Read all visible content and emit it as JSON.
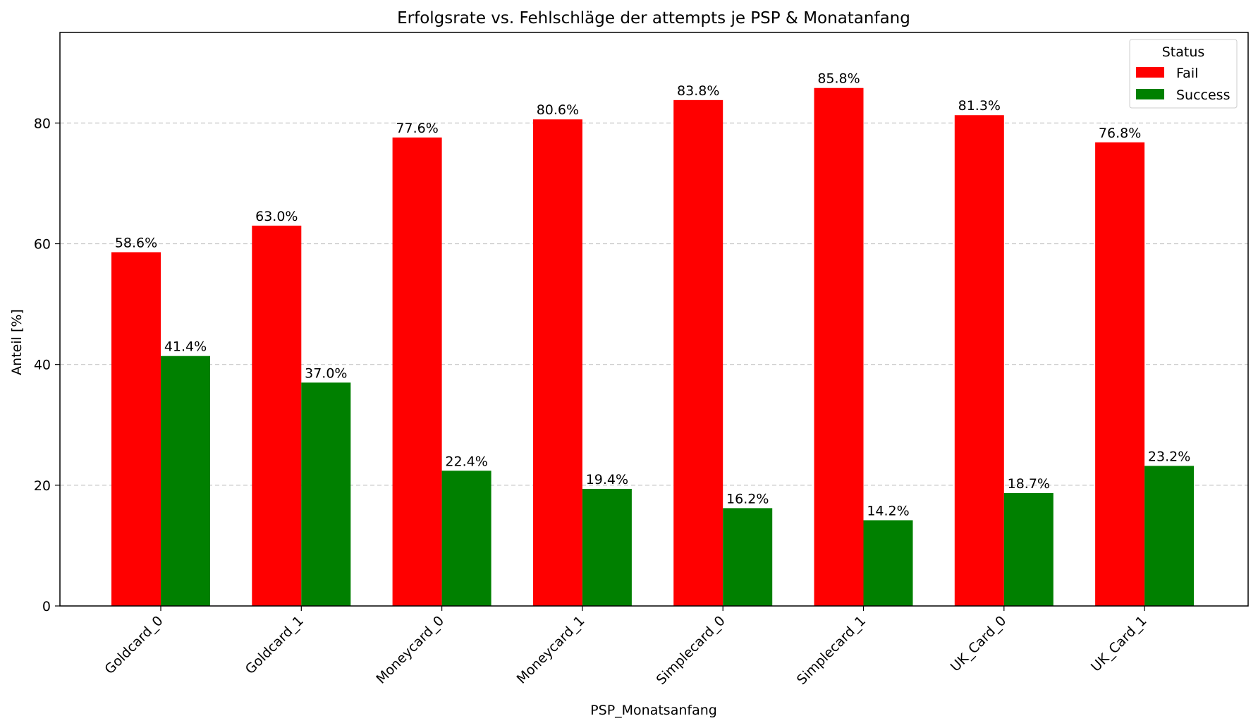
{
  "chart_data": {
    "type": "bar",
    "title": "Erfolgsrate vs. Fehlschläge der attempts je PSP & Monatanfang",
    "xlabel": "PSP_Monatsanfang",
    "ylabel": "Anteil [%]",
    "ylim": [
      0,
      95
    ],
    "yticks": [
      0,
      20,
      40,
      60,
      80
    ],
    "grid": "y-dashed",
    "categories": [
      "Goldcard_0",
      "Goldcard_1",
      "Moneycard_0",
      "Moneycard_1",
      "Simplecard_0",
      "Simplecard_1",
      "UK_Card_0",
      "UK_Card_1"
    ],
    "legend": {
      "title": "Status",
      "placement": "top-right"
    },
    "series": [
      {
        "name": "Fail",
        "color": "#ff0000",
        "values": [
          58.6,
          63.0,
          77.6,
          80.6,
          83.8,
          85.8,
          81.3,
          76.8
        ],
        "labels": [
          "58.6%",
          "63.0%",
          "77.6%",
          "80.6%",
          "83.8%",
          "85.8%",
          "81.3%",
          "76.8%"
        ]
      },
      {
        "name": "Success",
        "color": "#008000",
        "values": [
          41.4,
          37.0,
          22.4,
          19.4,
          16.2,
          14.2,
          18.7,
          23.2
        ],
        "labels": [
          "41.4%",
          "37.0%",
          "22.4%",
          "19.4%",
          "16.2%",
          "14.2%",
          "18.7%",
          "23.2%"
        ]
      }
    ]
  }
}
